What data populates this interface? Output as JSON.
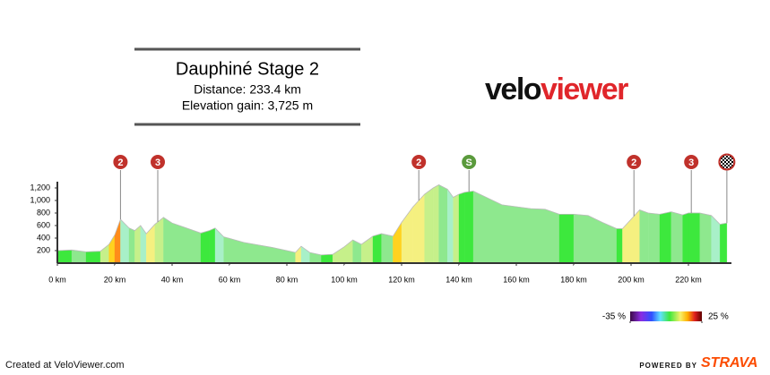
{
  "header": {
    "title": "Dauphiné Stage 2",
    "distance": "Distance: 233.4 km",
    "elevation_gain": "Elevation gain: 3,725 m"
  },
  "logo": {
    "part1": "velo",
    "part2": "viewer"
  },
  "footer": {
    "created": "Created at VeloViewer.com",
    "powered": "POWERED BY",
    "brand": "STRAVA"
  },
  "chart_data": {
    "type": "area",
    "x": [
      0,
      5,
      10,
      15,
      18,
      20,
      22,
      25,
      27,
      29,
      31,
      34,
      37,
      40,
      45,
      50,
      53,
      55,
      58,
      65,
      75,
      80,
      83,
      85,
      88,
      92,
      96,
      100,
      103,
      106,
      110,
      113,
      117,
      120,
      124,
      128,
      131,
      133,
      136,
      138,
      140,
      142,
      145,
      150,
      155,
      160,
      165,
      170,
      175,
      180,
      185,
      190,
      195,
      197,
      200,
      203,
      206,
      210,
      214,
      218,
      220,
      224,
      228,
      231,
      233.4
    ],
    "values": [
      200,
      210,
      180,
      190,
      300,
      450,
      700,
      560,
      520,
      600,
      470,
      620,
      730,
      640,
      560,
      480,
      520,
      560,
      420,
      330,
      250,
      200,
      170,
      270,
      170,
      130,
      140,
      260,
      370,
      300,
      430,
      470,
      430,
      650,
      900,
      1100,
      1200,
      1250,
      1180,
      1050,
      1100,
      1130,
      1150,
      1040,
      930,
      900,
      870,
      860,
      780,
      780,
      760,
      650,
      550,
      550,
      700,
      850,
      800,
      780,
      820,
      770,
      800,
      800,
      760,
      620,
      640
    ],
    "xlim": [
      0,
      235
    ],
    "ylim": [
      0,
      1300
    ],
    "xticks": [
      {
        "value": 0,
        "label": "0 km"
      },
      {
        "value": 20,
        "label": "20 km"
      },
      {
        "value": 40,
        "label": "40 km"
      },
      {
        "value": 60,
        "label": "60 km"
      },
      {
        "value": 80,
        "label": "80 km"
      },
      {
        "value": 100,
        "label": "100 km"
      },
      {
        "value": 120,
        "label": "120 km"
      },
      {
        "value": 140,
        "label": "140 km"
      },
      {
        "value": 160,
        "label": "160 km"
      },
      {
        "value": 180,
        "label": "180 km"
      },
      {
        "value": 200,
        "label": "200 km"
      },
      {
        "value": 220,
        "label": "220 km"
      }
    ],
    "yticks": [
      200,
      400,
      600,
      800,
      {
        "value": 1000,
        "label": "1,000"
      },
      {
        "value": 1200,
        "label": "1,200"
      }
    ],
    "markers": [
      {
        "x": 22,
        "label": "2",
        "color": "#c0312b"
      },
      {
        "x": 35,
        "label": "3",
        "color": "#c0312b"
      },
      {
        "x": 126,
        "label": "2",
        "color": "#c0312b"
      },
      {
        "x": 143.5,
        "label": "S",
        "color": "#5a9a3c"
      },
      {
        "x": 201,
        "label": "2",
        "color": "#c0312b"
      },
      {
        "x": 221,
        "label": "3",
        "color": "#c0312b"
      },
      {
        "x": 233.4,
        "icon": "finish",
        "color": "#c0312b"
      }
    ],
    "gradient_scale": [
      {
        "value": -35,
        "label": "-35 %"
      },
      {
        "value": 25,
        "label": "25 %"
      }
    ]
  }
}
